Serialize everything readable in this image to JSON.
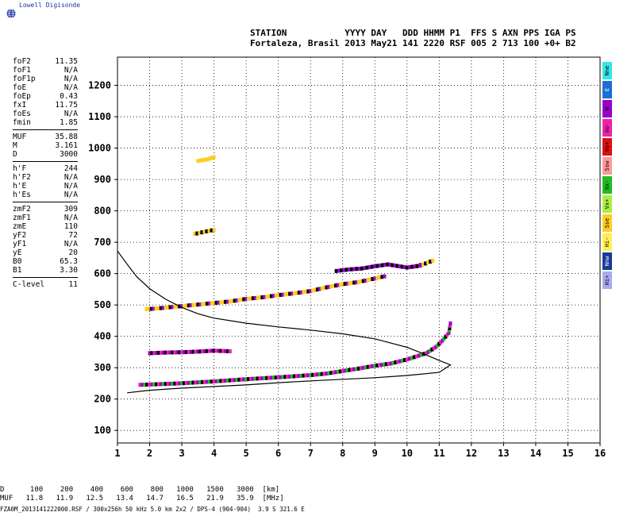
{
  "brand": {
    "name": "Lowell Digisonde",
    "color": "#1a2fa8"
  },
  "header": {
    "labels_line": "STATION           YYYY DAY   DDD HHMM P1  FFS S AXN PPS IGA PS",
    "values_line": "Fortaleza, Brasil 2013 May21 141 2220 RSF 005 2 713 100 +0+ B2"
  },
  "params": [
    {
      "k": "foF2",
      "v": "11.35"
    },
    {
      "k": "foF1",
      "v": "N/A"
    },
    {
      "k": "foF1p",
      "v": "N/A"
    },
    {
      "k": "foE",
      "v": "N/A"
    },
    {
      "k": "foEp",
      "v": "0.43"
    },
    {
      "k": "fxI",
      "v": "11.75"
    },
    {
      "k": "foEs",
      "v": "N/A"
    },
    {
      "k": "fmin",
      "v": "1.85"
    },
    {
      "sep": true
    },
    {
      "k": "MUF",
      "v": "35.88"
    },
    {
      "k": "M",
      "v": "3.161"
    },
    {
      "k": "D",
      "v": "3000"
    },
    {
      "sep": true
    },
    {
      "k": "h'F",
      "v": "244"
    },
    {
      "k": "h'F2",
      "v": "N/A"
    },
    {
      "k": "h'E",
      "v": "N/A"
    },
    {
      "k": "h'Es",
      "v": "N/A"
    },
    {
      "sep": true
    },
    {
      "k": "zmF2",
      "v": "309"
    },
    {
      "k": "zmF1",
      "v": "N/A"
    },
    {
      "k": "zmE",
      "v": "110"
    },
    {
      "k": "yF2",
      "v": "72"
    },
    {
      "k": "yF1",
      "v": "N/A"
    },
    {
      "k": "yE",
      "v": "20"
    },
    {
      "k": "B0",
      "v": "65.3"
    },
    {
      "k": "B1",
      "v": "3.30"
    },
    {
      "sep": true
    },
    {
      "k": "C-level",
      "v": "11"
    }
  ],
  "legend": [
    {
      "label": "Nne",
      "color": "#33e6e6"
    },
    {
      "label": "E",
      "color": "#1a6fd6"
    },
    {
      "label": "W",
      "color": "#9900cc"
    },
    {
      "label": "Vo-",
      "color": "#ee22aa"
    },
    {
      "label": "Vo+",
      "color": "#dd1111"
    },
    {
      "label": "Ssw",
      "color": "#ff9999"
    },
    {
      "label": "Vx-",
      "color": "#22bb22"
    },
    {
      "label": "Vx+",
      "color": "#aaee44"
    },
    {
      "label": "Sse",
      "color": "#ffcc22"
    },
    {
      "label": "Hi-",
      "color": "#ffee55"
    },
    {
      "label": "Nnw",
      "color": "#1a3a9a"
    },
    {
      "label": "Hi+",
      "color": "#aaaaee"
    }
  ],
  "muf_table": {
    "d_label": "D",
    "muf_label": "MUF",
    "d": [
      "100",
      "200",
      "400",
      "600",
      "800",
      "1000",
      "1500",
      "3000"
    ],
    "d_unit": "[km]",
    "muf": [
      "11.8",
      "11.9",
      "12.5",
      "13.4",
      "14.7",
      "16.5",
      "21.9",
      "35.9"
    ],
    "muf_unit": "[MHz]"
  },
  "footer": "FZA0M_2013141222000.RSF / 300x256h 50 kHz 5.0 km 2x2 / DPS-4 (904-904)  3.9 S 321.6 E",
  "chart_data": {
    "type": "scatter",
    "x_ticks": [
      "1",
      "2",
      "3",
      "4",
      "5",
      "6",
      "7",
      "8",
      "9",
      "10",
      "11",
      "12",
      "13",
      "14",
      "15",
      "16"
    ],
    "y_ticks": [
      "100",
      "200",
      "300",
      "400",
      "500",
      "600",
      "700",
      "800",
      "900",
      "1000",
      "1100",
      "1200"
    ],
    "xlim": [
      1,
      16
    ],
    "ylim": [
      60,
      1290
    ],
    "grid": "dotted",
    "colors": {
      "ordinary": "#ee22aa",
      "ordinary_dark": "#9900cc",
      "yellow": "#ffcc22",
      "green": "#22bb22",
      "black": "#000000",
      "profile": "#000000"
    },
    "traces": [
      {
        "name": "F2 ordinary trace",
        "points": [
          [
            1.7,
            244
          ],
          [
            2.5,
            247
          ],
          [
            3.0,
            249
          ],
          [
            4.0,
            255
          ],
          [
            5.0,
            262
          ],
          [
            6.0,
            268
          ],
          [
            7.0,
            275
          ],
          [
            7.5,
            280
          ],
          [
            8.0,
            288
          ],
          [
            8.5,
            296
          ],
          [
            9.0,
            305
          ],
          [
            9.5,
            312
          ],
          [
            10.0,
            325
          ],
          [
            10.3,
            335
          ],
          [
            10.6,
            345
          ],
          [
            10.9,
            365
          ],
          [
            11.1,
            385
          ],
          [
            11.3,
            410
          ],
          [
            11.35,
            440
          ]
        ]
      },
      {
        "name": "F2 second hop",
        "points": [
          [
            1.9,
            485
          ],
          [
            2.5,
            490
          ],
          [
            3.0,
            495
          ],
          [
            3.5,
            500
          ],
          [
            4.0,
            505
          ],
          [
            4.5,
            510
          ],
          [
            5.0,
            518
          ],
          [
            5.5,
            523
          ],
          [
            6.0,
            530
          ],
          [
            6.5,
            536
          ],
          [
            7.0,
            543
          ],
          [
            7.5,
            555
          ],
          [
            8.0,
            565
          ],
          [
            8.5,
            572
          ],
          [
            9.0,
            583
          ],
          [
            9.3,
            590
          ]
        ]
      },
      {
        "name": "F2 second hop upper",
        "points": [
          [
            10.2,
            620
          ],
          [
            10.5,
            628
          ],
          [
            10.8,
            640
          ]
        ]
      },
      {
        "name": "third hop",
        "points": [
          [
            3.4,
            725
          ],
          [
            3.7,
            732
          ],
          [
            4.0,
            738
          ]
        ]
      },
      {
        "name": "fourth hop",
        "points": [
          [
            3.5,
            958
          ],
          [
            3.8,
            963
          ],
          [
            4.0,
            970
          ]
        ]
      },
      {
        "name": "Es layer",
        "points": [
          [
            2.0,
            345
          ],
          [
            2.5,
            347
          ],
          [
            3.0,
            348
          ],
          [
            3.5,
            350
          ],
          [
            4.0,
            353
          ],
          [
            4.5,
            351
          ]
        ]
      },
      {
        "name": "second hop dark",
        "points": [
          [
            7.8,
            607
          ],
          [
            8.2,
            612
          ],
          [
            8.6,
            615
          ],
          [
            9.0,
            622
          ],
          [
            9.4,
            628
          ],
          [
            10.0,
            618
          ],
          [
            10.4,
            624
          ]
        ]
      }
    ],
    "profile": {
      "x": [
        1.0,
        1.3,
        1.6,
        2.0,
        2.5,
        3.0,
        3.5,
        4.0,
        5.0,
        6.0,
        7.0,
        8.0,
        9.0,
        10.0,
        10.5,
        11.0,
        11.35,
        11.0,
        10.0,
        9.0,
        8.0,
        7.0,
        6.0,
        5.0,
        4.0,
        3.0,
        2.0,
        1.3
      ],
      "y": [
        672,
        630,
        590,
        552,
        518,
        492,
        472,
        458,
        442,
        430,
        420,
        408,
        392,
        365,
        345,
        323,
        309,
        285,
        275,
        268,
        263,
        258,
        252,
        245,
        240,
        235,
        228,
        220
      ]
    }
  }
}
